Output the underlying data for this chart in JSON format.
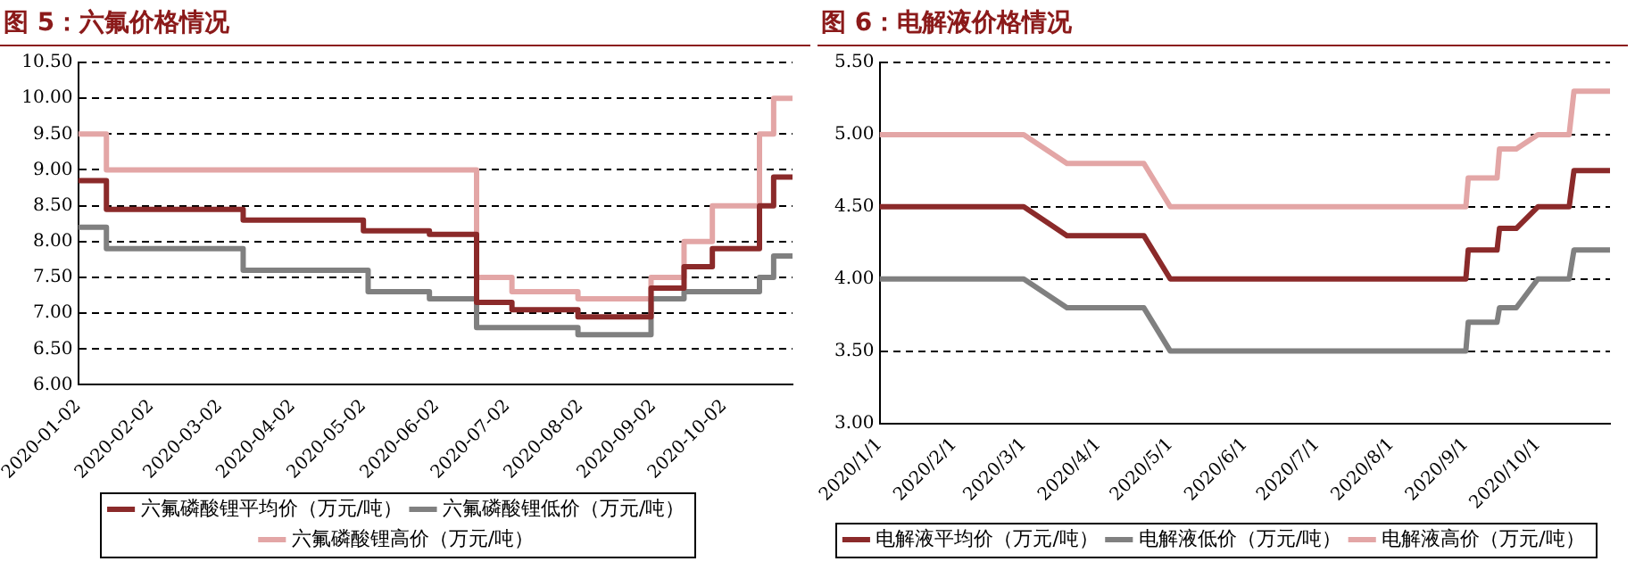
{
  "chart_data": [
    {
      "type": "step",
      "title": "图 5：六氟价格情况",
      "xlim": [
        "2020-01-02",
        "2020-10-31"
      ],
      "xticks": [
        "2020-01-02",
        "2020-02-02",
        "2020-03-02",
        "2020-04-02",
        "2020-05-02",
        "2020-06-02",
        "2020-07-02",
        "2020-08-02",
        "2020-09-02",
        "2020-10-02"
      ],
      "ylim": [
        6,
        10.5
      ],
      "yticks": [
        {
          "value": 6,
          "label": "6.00"
        },
        {
          "value": 6.5,
          "label": "6.50"
        },
        {
          "value": 7,
          "label": "7.00"
        },
        {
          "value": 7.5,
          "label": "7.50"
        },
        {
          "value": 8,
          "label": "8.00"
        },
        {
          "value": 8.5,
          "label": "8.50"
        },
        {
          "value": 9,
          "label": "9.00"
        },
        {
          "value": 9.5,
          "label": "9.50"
        },
        {
          "value": 10,
          "label": "10.00"
        },
        {
          "value": 10.5,
          "label": "10.50"
        }
      ],
      "grid": "y",
      "legend": "bottom",
      "line_style": "solid",
      "marker": "none",
      "series": [
        {
          "name": "六氟磷酸锂平均价（万元/吨）",
          "color": "#8b2a2a",
          "x": [
            "2020-01-02",
            "2020-01-14",
            "2020-03-12",
            "2020-05-02",
            "2020-05-30",
            "2020-06-19",
            "2020-07-04",
            "2020-08-01",
            "2020-09-01",
            "2020-09-15",
            "2020-09-27",
            "2020-10-17",
            "2020-10-23",
            "2020-10-31"
          ],
          "values": [
            8.85,
            8.45,
            8.3,
            8.15,
            8.1,
            7.15,
            7.05,
            6.95,
            7.35,
            7.65,
            7.9,
            8.5,
            8.9,
            8.9
          ]
        },
        {
          "name": "六氟磷酸锂低价（万元/吨）",
          "color": "#808080",
          "x": [
            "2020-01-02",
            "2020-01-14",
            "2020-03-12",
            "2020-05-04",
            "2020-05-30",
            "2020-06-19",
            "2020-08-01",
            "2020-09-01",
            "2020-09-15",
            "2020-10-17",
            "2020-10-23",
            "2020-10-31"
          ],
          "values": [
            8.2,
            7.9,
            7.6,
            7.3,
            7.2,
            6.8,
            6.7,
            7.2,
            7.3,
            7.5,
            7.8,
            7.8
          ]
        },
        {
          "name": "六氟磷酸锂高价（万元/吨）",
          "color": "#e3a6a6",
          "x": [
            "2020-01-02",
            "2020-01-14",
            "2020-06-19",
            "2020-07-04",
            "2020-08-01",
            "2020-09-01",
            "2020-09-15",
            "2020-09-27",
            "2020-10-17",
            "2020-10-23",
            "2020-10-31"
          ],
          "values": [
            9.5,
            9,
            7.5,
            7.3,
            7.2,
            7.5,
            8,
            8.5,
            9.5,
            10,
            10
          ]
        }
      ]
    },
    {
      "type": "line",
      "title": "图 6：电解液价格情况",
      "xlim": [
        "2020-01-01",
        "2020-10-31"
      ],
      "xticks": [
        {
          "value": "2020-01-01",
          "label": "2020/1/1"
        },
        {
          "value": "2020-02-01",
          "label": "2020/2/1"
        },
        {
          "value": "2020-03-01",
          "label": "2020/3/1"
        },
        {
          "value": "2020-04-01",
          "label": "2020/4/1"
        },
        {
          "value": "2020-05-01",
          "label": "2020/5/1"
        },
        {
          "value": "2020-06-01",
          "label": "2020/6/1"
        },
        {
          "value": "2020-07-01",
          "label": "2020/7/1"
        },
        {
          "value": "2020-08-01",
          "label": "2020/8/1"
        },
        {
          "value": "2020-09-01",
          "label": "2020/9/1"
        },
        {
          "value": "2020-10-01",
          "label": "2020/10/1"
        }
      ],
      "ylim": [
        3,
        5.5
      ],
      "yticks": [
        {
          "value": 3,
          "label": "3.00"
        },
        {
          "value": 3.5,
          "label": "3.50"
        },
        {
          "value": 4,
          "label": "4.00"
        },
        {
          "value": 4.5,
          "label": "4.50"
        },
        {
          "value": 5,
          "label": "5.00"
        },
        {
          "value": 5.5,
          "label": "5.50"
        }
      ],
      "grid": "y",
      "legend": "bottom",
      "line_style": "solid",
      "marker": "none",
      "series": [
        {
          "name": "电解液平均价（万元/吨）",
          "color": "#8b2a2a",
          "x": [
            "2020-01-01",
            "2020-03-01",
            "2020-03-19",
            "2020-04-20",
            "2020-05-01",
            "2020-09-01",
            "2020-09-02",
            "2020-09-14",
            "2020-09-15",
            "2020-09-22",
            "2020-10-01",
            "2020-10-14",
            "2020-10-16",
            "2020-10-31"
          ],
          "values": [
            4.5,
            4.5,
            4.3,
            4.3,
            4,
            4,
            4.2,
            4.2,
            4.35,
            4.35,
            4.5,
            4.5,
            4.75,
            4.75
          ]
        },
        {
          "name": "电解液低价（万元/吨）",
          "color": "#808080",
          "x": [
            "2020-01-01",
            "2020-03-01",
            "2020-03-19",
            "2020-04-20",
            "2020-05-01",
            "2020-09-01",
            "2020-09-02",
            "2020-09-14",
            "2020-09-15",
            "2020-09-22",
            "2020-10-01",
            "2020-10-14",
            "2020-10-16",
            "2020-10-31"
          ],
          "values": [
            4,
            4,
            3.8,
            3.8,
            3.5,
            3.5,
            3.7,
            3.7,
            3.8,
            3.8,
            4,
            4,
            4.2,
            4.2
          ]
        },
        {
          "name": "电解液高价（万元/吨）",
          "color": "#e3a6a6",
          "x": [
            "2020-01-01",
            "2020-03-01",
            "2020-03-19",
            "2020-04-20",
            "2020-05-01",
            "2020-09-01",
            "2020-09-02",
            "2020-09-14",
            "2020-09-15",
            "2020-09-22",
            "2020-10-01",
            "2020-10-14",
            "2020-10-16",
            "2020-10-31"
          ],
          "values": [
            5,
            5,
            4.8,
            4.8,
            4.5,
            4.5,
            4.7,
            4.7,
            4.9,
            4.9,
            5,
            5,
            5.3,
            5.3
          ]
        }
      ]
    }
  ]
}
